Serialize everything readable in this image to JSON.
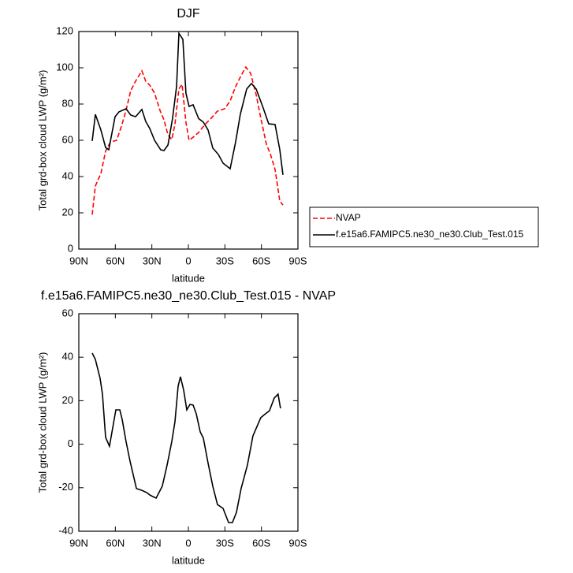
{
  "chart_data": [
    {
      "type": "line",
      "title": "DJF",
      "xlabel": "latitude",
      "ylabel": "Total grd-box cloud LWP (g/m²)",
      "xlim": [
        90,
        -90
      ],
      "xticks": [
        {
          "value": 90,
          "label": "90N"
        },
        {
          "value": 60,
          "label": "60N"
        },
        {
          "value": 30,
          "label": "30N"
        },
        0,
        {
          "value": -30,
          "label": "30S"
        },
        {
          "value": -60,
          "label": "60S"
        },
        {
          "value": -90,
          "label": "90S"
        }
      ],
      "ylim": [
        0,
        120
      ],
      "yticks": [
        0,
        20,
        40,
        60,
        80,
        100,
        120
      ],
      "legend": "right",
      "series": [
        {
          "name": "NVAP",
          "color": "#ff0000",
          "style": "dashed",
          "x": [
            79,
            76.4,
            71.9,
            68,
            64.1,
            58.9,
            55,
            51.2,
            47.3,
            43.4,
            38.2,
            35,
            31.7,
            27.8,
            23.3,
            20.1,
            16.8,
            13.6,
            11,
            7.8,
            5.2,
            2,
            -0.6,
            -3.9,
            -8.4,
            -13.6,
            -18.8,
            -23.9,
            -29.8,
            -34.3,
            -38.8,
            -43.3,
            -47.2,
            -51.1,
            -55.7,
            -59.5,
            -64.1,
            -67.3,
            -71.2,
            -75.1,
            -77.7
          ],
          "values": [
            19,
            34.8,
            41.7,
            54,
            59,
            60,
            67.8,
            76.5,
            87.4,
            92.6,
            98.3,
            92.6,
            90.4,
            86,
            76.5,
            71.3,
            63,
            60.4,
            69,
            88.3,
            90.9,
            70,
            60,
            61.7,
            64.3,
            68.7,
            72.2,
            76.1,
            77.4,
            81.7,
            89.6,
            95.7,
            100.4,
            97,
            85.2,
            72.2,
            57.8,
            52.6,
            43.9,
            26.5,
            24.3
          ]
        },
        {
          "name": "f.e15a6.FAMIPC5.ne30_ne30.Club_Test.015",
          "color": "#000000",
          "style": "solid",
          "x": [
            79,
            76.4,
            71.9,
            68,
            65.4,
            60.2,
            57,
            51.2,
            47.3,
            43.4,
            38.2,
            35,
            31.7,
            27.8,
            22.7,
            20.1,
            16.8,
            13,
            9.7,
            7.8,
            4.5,
            2,
            -0.6,
            -3.9,
            -8.4,
            -12.3,
            -16.2,
            -20.1,
            -24.6,
            -28.5,
            -34.3,
            -38.8,
            -42.7,
            -47.9,
            -51.8,
            -55.7,
            -61.5,
            -66,
            -71.2,
            -75.1,
            -77.7
          ],
          "values": [
            59.6,
            74.3,
            65.7,
            56,
            54.8,
            73,
            75.7,
            77.4,
            73.9,
            73,
            77,
            70.4,
            66.5,
            60,
            54.8,
            54.3,
            57.4,
            72,
            89.6,
            119,
            115.7,
            86,
            78.7,
            79.6,
            72,
            70,
            65.7,
            55.7,
            52.2,
            47.4,
            44.3,
            59,
            74.3,
            88.3,
            91.3,
            88.3,
            77.8,
            69.1,
            68.7,
            54.8,
            40.9
          ]
        }
      ]
    },
    {
      "type": "line",
      "title": "f.e15a6.FAMIPC5.ne30_ne30.Club_Test.015 - NVAP",
      "xlabel": "latitude",
      "ylabel": "Total grd-box cloud LWP (g/m²)",
      "xlim": [
        90,
        -90
      ],
      "xticks": [
        {
          "value": 90,
          "label": "90N"
        },
        {
          "value": 60,
          "label": "60N"
        },
        {
          "value": 30,
          "label": "30N"
        },
        0,
        {
          "value": -30,
          "label": "30S"
        },
        {
          "value": -60,
          "label": "60S"
        },
        {
          "value": -90,
          "label": "90S"
        }
      ],
      "ylim": [
        -40,
        60
      ],
      "yticks": [
        -40,
        -20,
        0,
        20,
        40,
        60
      ],
      "series": [
        {
          "color": "#000000",
          "style": "solid",
          "x": [
            79,
            76.4,
            72.5,
            70.6,
            68,
            64.8,
            59.6,
            56.3,
            54.4,
            51.2,
            47.9,
            42.7,
            38.2,
            34.3,
            31.7,
            29.1,
            26.5,
            21.4,
            17.5,
            13.6,
            11,
            8.4,
            6.5,
            3.9,
            1.3,
            -1.3,
            -3.9,
            -6.5,
            -9.7,
            -12.3,
            -16.2,
            -20.1,
            -23.9,
            -28.5,
            -33,
            -36.2,
            -39.5,
            -43.3,
            -48.5,
            -53,
            -59.5,
            -63.3,
            -66.6,
            -70.5,
            -73.7,
            -75.7
          ],
          "values": [
            41.9,
            39,
            30.3,
            23,
            3.1,
            -0.9,
            15.8,
            15.8,
            11.4,
            1.3,
            -7.8,
            -20.4,
            -21.2,
            -22.2,
            -23.3,
            -24.1,
            -24.8,
            -19.3,
            -9.6,
            1.3,
            10.4,
            26.7,
            31,
            24.9,
            15.8,
            18.3,
            18,
            14,
            5.7,
            2.8,
            -8.7,
            -19.3,
            -27.7,
            -29.5,
            -36,
            -36,
            -31.3,
            -20.4,
            -9.6,
            3.8,
            12.2,
            14,
            15.4,
            21.2,
            23,
            16.5
          ]
        }
      ]
    }
  ]
}
